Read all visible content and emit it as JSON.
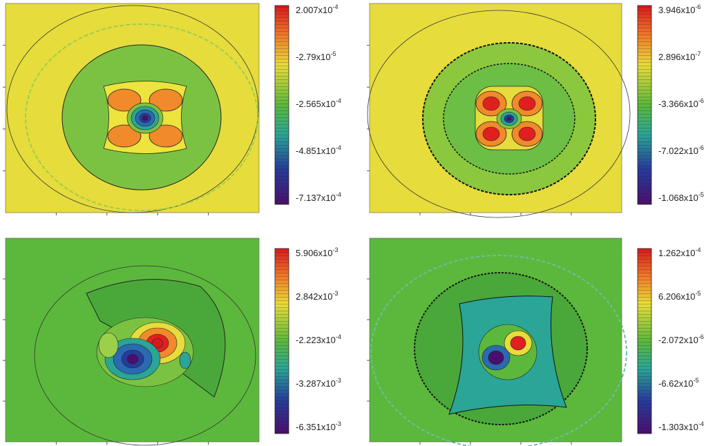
{
  "panels": [
    {
      "colorbar": {
        "labels": [
          {
            "mantissa": "2.007x10",
            "exponent": "-4"
          },
          {
            "mantissa": "-2.79x10",
            "exponent": "-5"
          },
          {
            "mantissa": "-2.565x10",
            "exponent": "-4"
          },
          {
            "mantissa": "-4.851x10",
            "exponent": "-4"
          },
          {
            "mantissa": "-7.137x10",
            "exponent": "-4"
          }
        ]
      }
    },
    {
      "colorbar": {
        "labels": [
          {
            "mantissa": "3.946x10",
            "exponent": "-6"
          },
          {
            "mantissa": "2.896x10",
            "exponent": "-7"
          },
          {
            "mantissa": "-3.366x10",
            "exponent": "-6"
          },
          {
            "mantissa": "-7.022x10",
            "exponent": "-6"
          },
          {
            "mantissa": "-1.068x10",
            "exponent": "-5"
          }
        ]
      }
    },
    {
      "colorbar": {
        "labels": [
          {
            "mantissa": "5.906x10",
            "exponent": "-3"
          },
          {
            "mantissa": "2.842x10",
            "exponent": "-3"
          },
          {
            "mantissa": "-2.223x10",
            "exponent": "-4"
          },
          {
            "mantissa": "-3.287x10",
            "exponent": "-3"
          },
          {
            "mantissa": "-6.351x10",
            "exponent": "-3"
          }
        ]
      }
    },
    {
      "colorbar": {
        "labels": [
          {
            "mantissa": "1.262x10",
            "exponent": "-4"
          },
          {
            "mantissa": "6.206x10",
            "exponent": "-5"
          },
          {
            "mantissa": "-2.072x10",
            "exponent": "-6"
          },
          {
            "mantissa": "-6.62x10",
            "exponent": "-5"
          },
          {
            "mantissa": "-1.303x10",
            "exponent": "-4"
          }
        ]
      }
    }
  ]
}
